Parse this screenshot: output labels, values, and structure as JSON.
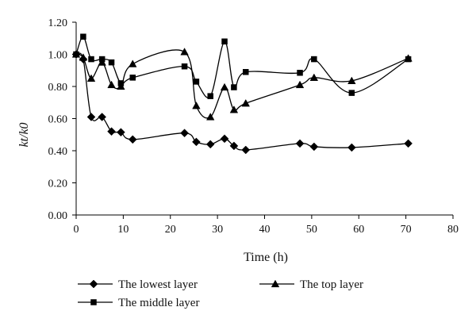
{
  "chart_data": {
    "type": "line",
    "xlabel": "Time (h)",
    "ylabel": "kt/k0",
    "xlim": [
      0,
      80
    ],
    "ylim": [
      0,
      1.2
    ],
    "x_ticks": [
      0,
      10,
      20,
      30,
      40,
      50,
      60,
      70,
      80
    ],
    "y_ticks": [
      0,
      0.2,
      0.4,
      0.6,
      0.8,
      1.0,
      1.2
    ],
    "x_tick_labels": [
      "0",
      "10",
      "20",
      "30",
      "40",
      "50",
      "60",
      "70",
      "80"
    ],
    "y_tick_labels": [
      "0.00",
      "0.20",
      "0.40",
      "0.60",
      "0.80",
      "1.00",
      "1.20"
    ],
    "grid": false,
    "legend_position": "bottom",
    "series": [
      {
        "name": "The lowest layer",
        "marker": "diamond",
        "x": [
          0,
          1.5,
          3.2,
          5.5,
          7.5,
          9.5,
          12,
          23,
          25.5,
          28.5,
          31.5,
          33.5,
          36,
          47.5,
          50.5,
          58.5,
          70.5
        ],
        "y": [
          1.0,
          0.97,
          0.61,
          0.61,
          0.52,
          0.515,
          0.47,
          0.51,
          0.455,
          0.44,
          0.475,
          0.43,
          0.405,
          0.445,
          0.425,
          0.42,
          0.445
        ]
      },
      {
        "name": "The middle layer",
        "marker": "square",
        "x": [
          0,
          1.5,
          3.2,
          5.5,
          7.5,
          9.5,
          12,
          23,
          25.5,
          28.5,
          31.5,
          33.5,
          36,
          47.5,
          50.5,
          58.5,
          70.5
        ],
        "y": [
          1.0,
          1.11,
          0.97,
          0.97,
          0.95,
          0.82,
          0.855,
          0.925,
          0.83,
          0.74,
          1.08,
          0.795,
          0.89,
          0.885,
          0.97,
          0.76,
          0.97
        ]
      },
      {
        "name": "The top layer",
        "marker": "triangle",
        "x": [
          0,
          1.5,
          3.2,
          5.5,
          7.5,
          9.5,
          12,
          23,
          25.5,
          28.5,
          31.5,
          33.5,
          36,
          47.5,
          50.5,
          58.5,
          70.5
        ],
        "y": [
          1.0,
          0.98,
          0.85,
          0.95,
          0.81,
          0.8,
          0.94,
          1.015,
          0.68,
          0.61,
          0.795,
          0.655,
          0.695,
          0.81,
          0.855,
          0.835,
          0.975
        ]
      }
    ]
  }
}
